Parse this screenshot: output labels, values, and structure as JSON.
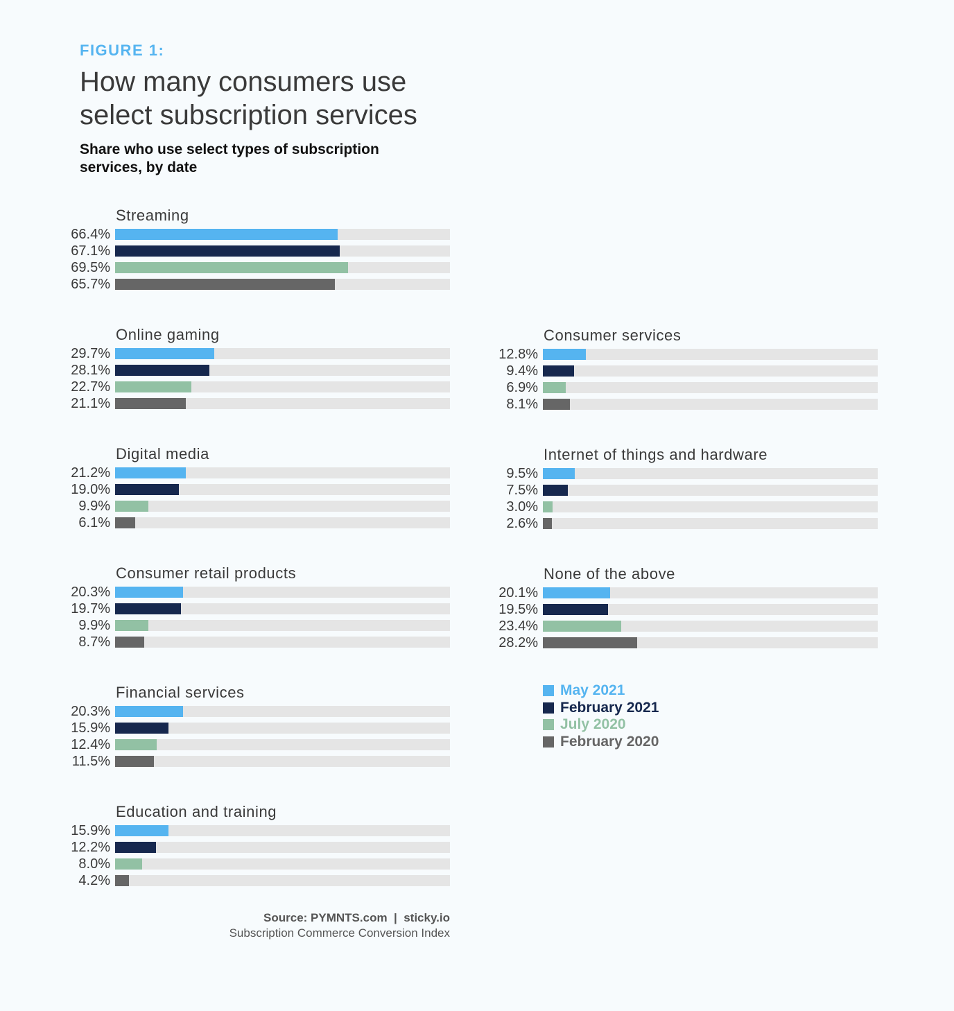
{
  "header": {
    "figure_label": "FIGURE 1:",
    "title": "How many consumers use select subscription services",
    "subtitle": "Share who use select types of subscription services, by date"
  },
  "colors": {
    "series": [
      "#55b4f0",
      "#16284e",
      "#92c1a4",
      "#666666"
    ],
    "track": "#e5e5e5"
  },
  "chart_data": {
    "type": "bar",
    "orientation": "horizontal",
    "title": "How many consumers use select subscription services",
    "subtitle": "Share who use select types of subscription services, by date",
    "unit": "%",
    "xlim": [
      0,
      100
    ],
    "series_names": [
      "May 2021",
      "February 2021",
      "July 2020",
      "February 2020"
    ],
    "groups": [
      {
        "name": "Streaming",
        "values": [
          66.4,
          67.1,
          69.5,
          65.7
        ],
        "labels": [
          "66.4%",
          "67.1%",
          "69.5%",
          "65.7%"
        ]
      },
      {
        "name": "Online gaming",
        "values": [
          29.7,
          28.1,
          22.7,
          21.1
        ],
        "labels": [
          "29.7%",
          "28.1%",
          "22.7%",
          "21.1%"
        ]
      },
      {
        "name": "Digital media",
        "values": [
          21.2,
          19.0,
          9.9,
          6.1
        ],
        "labels": [
          "21.2%",
          "19.0%",
          "9.9%",
          "6.1%"
        ]
      },
      {
        "name": "Consumer retail products",
        "values": [
          20.3,
          19.7,
          9.9,
          8.7
        ],
        "labels": [
          "20.3%",
          "19.7%",
          "9.9%",
          "8.7%"
        ]
      },
      {
        "name": "Financial services",
        "values": [
          20.3,
          15.9,
          12.4,
          11.5
        ],
        "labels": [
          "20.3%",
          "15.9%",
          "12.4%",
          "11.5%"
        ]
      },
      {
        "name": "Education and training",
        "values": [
          15.9,
          12.2,
          8.0,
          4.2
        ],
        "labels": [
          "15.9%",
          "12.2%",
          "8.0%",
          "4.2%"
        ]
      },
      {
        "name": "Consumer services",
        "values": [
          12.8,
          9.4,
          6.9,
          8.1
        ],
        "labels": [
          "12.8%",
          "9.4%",
          "6.9%",
          "8.1%"
        ]
      },
      {
        "name": "Internet of things and hardware",
        "values": [
          9.5,
          7.5,
          3.0,
          2.6
        ],
        "labels": [
          "9.5%",
          "7.5%",
          "3.0%",
          "2.6%"
        ]
      },
      {
        "name": "None of the above",
        "values": [
          20.1,
          19.5,
          23.4,
          28.2
        ],
        "labels": [
          "20.1%",
          "19.5%",
          "23.4%",
          "28.2%"
        ]
      }
    ]
  },
  "legend": {
    "items": [
      "May 2021",
      "February 2021",
      "July 2020",
      "February 2020"
    ],
    "colors": [
      "#55b4f0",
      "#16284e",
      "#92c1a4",
      "#666666"
    ]
  },
  "source": {
    "line1": "Source: PYMNTS.com  |  sticky.io",
    "line2": "Subscription Commerce Conversion Index"
  }
}
